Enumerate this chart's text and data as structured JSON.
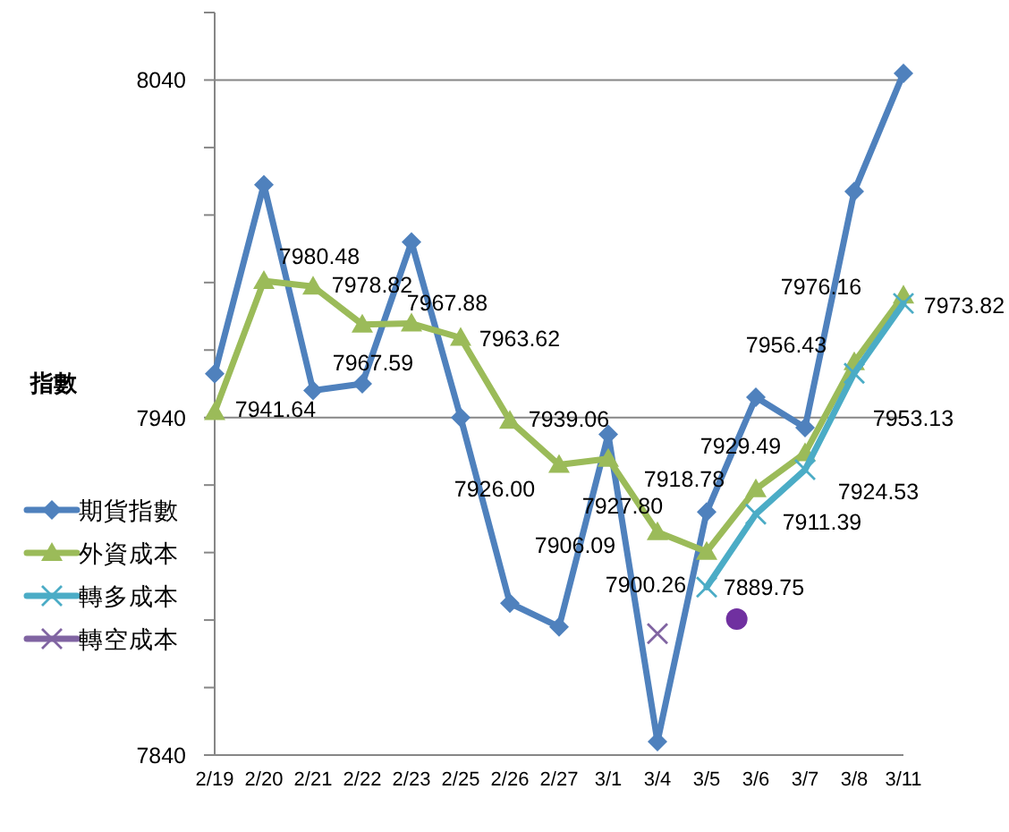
{
  "chart_data": {
    "type": "line",
    "ylabel": "指數",
    "categories": [
      "2/19",
      "2/20",
      "2/21",
      "2/22",
      "2/23",
      "2/25",
      "2/26",
      "2/27",
      "3/1",
      "3/4",
      "3/5",
      "3/6",
      "3/7",
      "3/8",
      "3/11"
    ],
    "ylim": [
      7840,
      8060
    ],
    "yticks": [
      7840,
      {
        "value": 7860,
        "label": null
      },
      {
        "value": 7880,
        "label": null
      },
      {
        "value": 7900,
        "label": null
      },
      {
        "value": 7920,
        "label": null
      },
      7940,
      {
        "value": 7960,
        "label": null
      },
      {
        "value": 7980,
        "label": null
      },
      {
        "value": 8000,
        "label": null
      },
      {
        "value": 8020,
        "label": null
      },
      8040,
      {
        "value": 8060,
        "label": null
      }
    ],
    "grid": "y",
    "legend": "left",
    "series": [
      {
        "name": "期貨指數",
        "color": "#4f81bd",
        "marker": "diamond",
        "values": [
          7953,
          8009,
          7948,
          7950,
          7992,
          7940,
          7885,
          7878,
          7935,
          7844,
          7912,
          7946,
          7937,
          8007,
          8042
        ]
      },
      {
        "name": "外資成本",
        "color": "#9bbb59",
        "marker": "triangle",
        "values": [
          7941.64,
          7980.48,
          7978.82,
          7967.59,
          7967.88,
          7963.62,
          7939.06,
          7926.0,
          7927.8,
          7906.09,
          7900.26,
          7918.78,
          7929.49,
          7956.43,
          7976.16
        ],
        "value_labels": [
          "7941.64",
          "7980.48",
          "7978.82",
          "7967.59",
          "7967.88",
          "7963.62",
          "7939.06",
          "7926.00",
          "7927.80",
          "7906.09",
          "7900.26",
          "7918.78",
          "7929.49",
          "7956.43",
          "7976.16"
        ]
      },
      {
        "name": "轉多成本",
        "color": "#4bacc6",
        "marker": "cross",
        "values": [
          null,
          null,
          null,
          null,
          null,
          null,
          null,
          null,
          null,
          null,
          7889.75,
          7911.39,
          7924.53,
          7953.13,
          7973.82
        ],
        "value_labels": [
          null,
          null,
          null,
          null,
          null,
          null,
          null,
          null,
          null,
          null,
          "7889.75",
          "7911.39",
          "7924.53",
          "7953.13",
          "7973.82"
        ]
      },
      {
        "name": "轉空成本",
        "color": "#8064a2",
        "marker": "cross",
        "values": [
          null,
          null,
          null,
          null,
          null,
          null,
          null,
          null,
          null,
          7876,
          null,
          null,
          null,
          null,
          null
        ]
      }
    ]
  }
}
